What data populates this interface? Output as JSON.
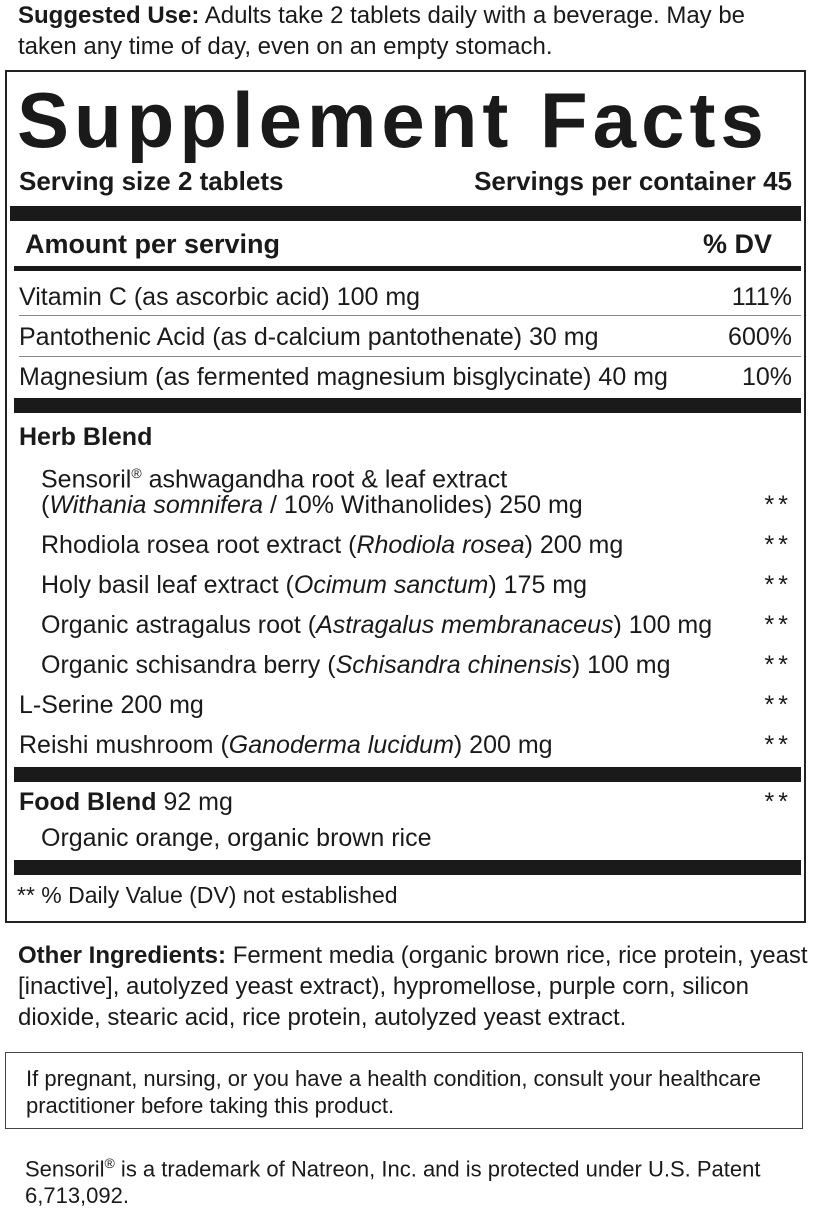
{
  "suggested_use": {
    "label": "Suggested Use:",
    "text": " Adults take 2 tablets daily with a beverage. May be taken any time of day, even on an empty stomach."
  },
  "facts": {
    "title": "Supplement Facts",
    "serving_size": "Serving size 2 tablets",
    "servings_per_container": "Servings per container 45",
    "amount_header": "Amount per serving",
    "dv_header": "% DV",
    "nutrients": [
      {
        "name": "Vitamin C (as ascorbic acid) 100 mg",
        "dv": "111%"
      },
      {
        "name": "Pantothenic Acid (as d-calcium pantothenate) 30 mg",
        "dv": "600%"
      },
      {
        "name": "Magnesium (as fermented magnesium bisglycinate) 40 mg",
        "dv": "10%"
      }
    ],
    "herb_blend": {
      "title": "Herb Blend",
      "items": [
        {
          "pre": "Sensoril",
          "reg": "®",
          "post": " ashwagandha root & leaf extract",
          "line2_pre": "(",
          "italic": "Withania somnifera",
          "line2_post": " / 10% Withanolides) 250 mg",
          "dv": "**"
        },
        {
          "pre": "Rhodiola rosea root extract (",
          "italic": "Rhodiola rosea",
          "post": ") 200 mg",
          "dv": "**"
        },
        {
          "pre": "Holy basil leaf extract (",
          "italic": "Ocimum sanctum",
          "post": ") 175 mg",
          "dv": "**"
        },
        {
          "pre": "Organic astragalus root (",
          "italic": "Astragalus membranaceus",
          "post": ") 100 mg",
          "dv": "**"
        },
        {
          "pre": "Organic schisandra berry (",
          "italic": "Schisandra chinensis",
          "post": ") 100 mg",
          "dv": "**"
        }
      ]
    },
    "l_serine": {
      "text": "L-Serine 200 mg",
      "dv": "**"
    },
    "reishi": {
      "pre": "Reishi mushroom (",
      "italic": "Ganoderma lucidum",
      "post": ") 200 mg",
      "dv": "**"
    },
    "food_blend": {
      "title": "Food Blend",
      "amount": " 92 mg",
      "dv": "**",
      "items": "Organic orange, organic brown rice"
    },
    "footnote": "** % Daily Value (DV) not established"
  },
  "other_ingredients": {
    "label": "Other Ingredients:",
    "text": " Ferment media (organic brown rice, rice protein, yeast [inactive], autolyzed yeast extract), hypromellose, purple corn, silicon dioxide, stearic acid, rice protein, autolyzed yeast extract."
  },
  "warning": "If pregnant, nursing, or you have a health condition, consult your healthcare practitioner before taking this product.",
  "trademark": {
    "pre": "Sensoril",
    "reg": "®",
    "post": " is a trademark of Natreon, Inc. and is protected under U.S. Patent 6,713,092."
  }
}
